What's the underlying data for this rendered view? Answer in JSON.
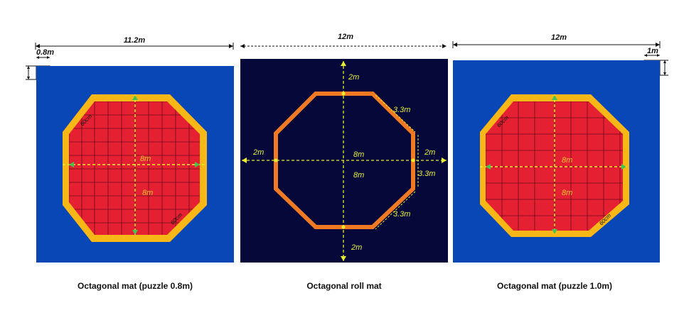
{
  "panels": [
    {
      "id": "left",
      "title": "Octagonal mat (puzzle 0.8m)",
      "width_label": "11.2m",
      "tile_label": "0.8m",
      "diag_label_1": "8m",
      "diag_label_2": "8m",
      "border_label_1": "60cm",
      "border_label_2": "60cm"
    },
    {
      "id": "middle",
      "title": "Octagonal roll mat",
      "width_label": "12m",
      "top_label": "2m",
      "bottom_label": "2m",
      "left_label": "2m",
      "right_label": "2m",
      "center_label_1": "8m",
      "center_label_2": "8m",
      "edge_label_1": "3.3m",
      "edge_label_2": "3.3m",
      "edge_label_3": "3.3m"
    },
    {
      "id": "right",
      "title": "Octagonal mat (puzzle 1.0m)",
      "width_label": "12m",
      "tile_label": "1m",
      "diag_label_1": "8m",
      "diag_label_2": "8m",
      "border_label_1": "60cm",
      "border_label_2": "60cm"
    }
  ],
  "colors": {
    "blue_bg": "#0a47b6",
    "navy_bg": "#06083a",
    "border_yellow": "#f6b717",
    "mat_red": "#e62033",
    "grid_line": "#6b0e18",
    "roll_orange": "#f07a24",
    "guide_yellow": "#e8ee2e",
    "guide_green": "#49c34f"
  }
}
